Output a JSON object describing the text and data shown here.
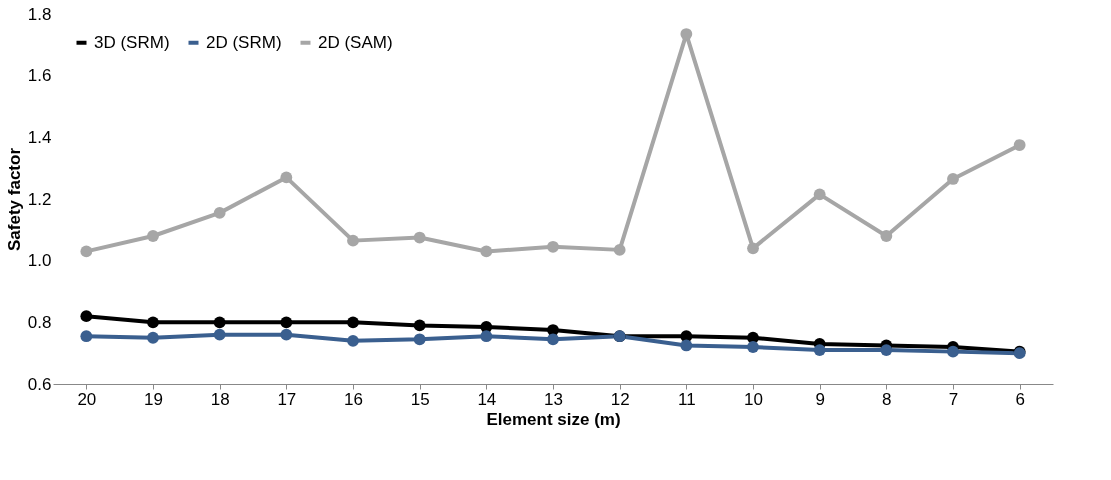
{
  "chart_data": {
    "type": "line",
    "xlabel": "Element size (m)",
    "ylabel": "Safety factor",
    "categories": [
      "20",
      "19",
      "18",
      "17",
      "16",
      "15",
      "14",
      "13",
      "12",
      "11",
      "10",
      "9",
      "8",
      "7",
      "6"
    ],
    "series": [
      {
        "name": "3D (SRM)",
        "color": "#000000",
        "values": [
          0.82,
          0.8,
          0.8,
          0.8,
          0.8,
          0.79,
          0.785,
          0.775,
          0.755,
          0.755,
          0.75,
          0.73,
          0.725,
          0.72,
          0.705
        ]
      },
      {
        "name": "2D (SRM)",
        "color": "#3a5f8f",
        "values": [
          0.755,
          0.75,
          0.76,
          0.76,
          0.74,
          0.745,
          0.755,
          0.745,
          0.755,
          0.725,
          0.72,
          0.71,
          0.71,
          0.705,
          0.7
        ]
      },
      {
        "name": "2D (SAM)",
        "color": "#a6a6a6",
        "values": [
          1.03,
          1.08,
          1.155,
          1.27,
          1.065,
          1.075,
          1.03,
          1.045,
          1.035,
          1.735,
          1.04,
          1.215,
          1.08,
          1.265,
          1.375
        ]
      }
    ],
    "ylim": [
      0.6,
      1.8
    ],
    "yticks": [
      0.6,
      0.8,
      {
        "value": 1,
        "label": "1.0"
      },
      1.2,
      1.4,
      1.6,
      1.8
    ],
    "grid": false,
    "legend": "top left",
    "marker": "circle",
    "line_style": "solid"
  }
}
